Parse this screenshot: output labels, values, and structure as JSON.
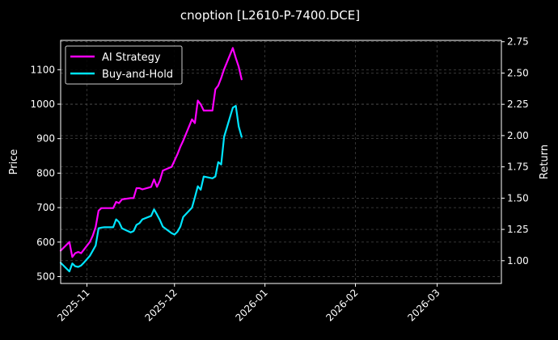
{
  "chart_data": {
    "type": "line",
    "title": "cnoption [L2610-P-7400.DCE]",
    "ylabel": "Price",
    "ylabel_right": "Return",
    "background": "#000000",
    "grid": true,
    "legend_placement": "top-left",
    "x_ticks": [
      {
        "date": "2025-11-01",
        "label": "2025-11"
      },
      {
        "date": "2025-12-01",
        "label": "2025-12"
      },
      {
        "date": "2026-01-01",
        "label": "2026-01"
      },
      {
        "date": "2026-02-01",
        "label": "2026-02"
      },
      {
        "date": "2026-03-01",
        "label": "2026-03"
      }
    ],
    "xlim": [
      "2025-10-23",
      "2026-03-23"
    ],
    "ylim": [
      480,
      1185
    ],
    "y_ticks": [
      500,
      600,
      700,
      800,
      900,
      1000,
      1100
    ],
    "ylim_right": [
      0.818,
      2.761
    ],
    "y_ticks_right": [
      "1.00",
      "1.25",
      "1.50",
      "1.75",
      "2.00",
      "2.25",
      "2.50",
      "2.75"
    ],
    "series": [
      {
        "name": "AI Strategy",
        "axis": "right",
        "color": "#ff00ff",
        "x": [
          "2025-10-23",
          "2025-10-26",
          "2025-10-27",
          "2025-10-28",
          "2025-10-29",
          "2025-10-30",
          "2025-10-31",
          "2025-11-02",
          "2025-11-03",
          "2025-11-04",
          "2025-11-05",
          "2025-11-06",
          "2025-11-07",
          "2025-11-10",
          "2025-11-11",
          "2025-11-12",
          "2025-11-13",
          "2025-11-16",
          "2025-11-17",
          "2025-11-18",
          "2025-11-19",
          "2025-11-20",
          "2025-11-23",
          "2025-11-24",
          "2025-11-25",
          "2025-11-26",
          "2025-11-27",
          "2025-11-30",
          "2025-12-01",
          "2025-12-02",
          "2025-12-03",
          "2025-12-04",
          "2025-12-07",
          "2025-12-08",
          "2025-12-09",
          "2025-12-10",
          "2025-12-11",
          "2025-12-14",
          "2025-12-15",
          "2025-12-16",
          "2025-12-17",
          "2025-12-18",
          "2025-12-21",
          "2025-12-22",
          "2025-12-23",
          "2025-12-24"
        ],
        "y": [
          1.08,
          1.15,
          1.03,
          1.06,
          1.07,
          1.06,
          1.09,
          1.15,
          1.2,
          1.27,
          1.4,
          1.42,
          1.42,
          1.42,
          1.47,
          1.46,
          1.49,
          1.5,
          1.5,
          1.58,
          1.58,
          1.57,
          1.59,
          1.65,
          1.59,
          1.64,
          1.72,
          1.75,
          1.8,
          1.85,
          1.91,
          1.96,
          2.13,
          2.1,
          2.28,
          2.25,
          2.2,
          2.2,
          2.37,
          2.4,
          2.46,
          2.53,
          2.7,
          2.62,
          2.55,
          2.45
        ]
      },
      {
        "name": "Buy-and-Hold",
        "axis": "left",
        "color": "#00e5ff",
        "x": [
          "2025-10-23",
          "2025-10-26",
          "2025-10-27",
          "2025-10-28",
          "2025-10-29",
          "2025-10-30",
          "2025-10-31",
          "2025-11-02",
          "2025-11-03",
          "2025-11-04",
          "2025-11-05",
          "2025-11-06",
          "2025-11-07",
          "2025-11-10",
          "2025-11-11",
          "2025-11-12",
          "2025-11-13",
          "2025-11-16",
          "2025-11-17",
          "2025-11-18",
          "2025-11-19",
          "2025-11-20",
          "2025-11-23",
          "2025-11-24",
          "2025-11-25",
          "2025-11-26",
          "2025-11-27",
          "2025-11-30",
          "2025-12-01",
          "2025-12-02",
          "2025-12-03",
          "2025-12-04",
          "2025-12-07",
          "2025-12-08",
          "2025-12-09",
          "2025-12-10",
          "2025-12-11",
          "2025-12-14",
          "2025-12-15",
          "2025-12-16",
          "2025-12-17",
          "2025-12-18",
          "2025-12-21",
          "2025-12-22",
          "2025-12-23",
          "2025-12-24"
        ],
        "y": [
          540,
          515,
          538,
          530,
          528,
          532,
          541,
          560,
          575,
          590,
          640,
          642,
          643,
          643,
          666,
          658,
          640,
          628,
          632,
          650,
          655,
          666,
          676,
          695,
          680,
          664,
          645,
          626,
          622,
          630,
          645,
          673,
          700,
          730,
          762,
          752,
          790,
          785,
          790,
          832,
          825,
          905,
          990,
          995,
          935,
          905
        ]
      }
    ]
  }
}
